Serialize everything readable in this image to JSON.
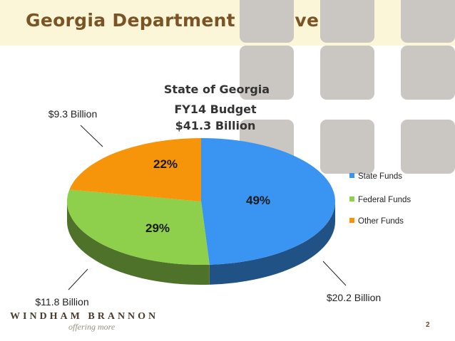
{
  "slide": {
    "title": "Georgia Department of Revenue",
    "page_number": "2"
  },
  "footer": {
    "logo_name": "WINDHAM BRANNON",
    "logo_tagline": "offering more"
  },
  "colors": {
    "header_band": "#fbf6d7",
    "title_text": "#7b5425",
    "deco_square": "#cac6c1"
  },
  "chart_data": {
    "type": "pie",
    "style": "3d",
    "title_lines": [
      "State of Georgia",
      "FY14 Budget",
      "$41.3 Billion"
    ],
    "categories": [
      "State Funds",
      "Federal Funds",
      "Other Funds"
    ],
    "values": [
      49,
      29,
      22
    ],
    "value_labels": [
      "49%",
      "29%",
      "22%"
    ],
    "amount_labels": [
      "$20.2 Billion",
      "$11.8 Billion",
      "$9.3 Billion"
    ],
    "colors": [
      "#3a95f2",
      "#8ecf4c",
      "#f7950a"
    ],
    "legend_position": "right"
  }
}
